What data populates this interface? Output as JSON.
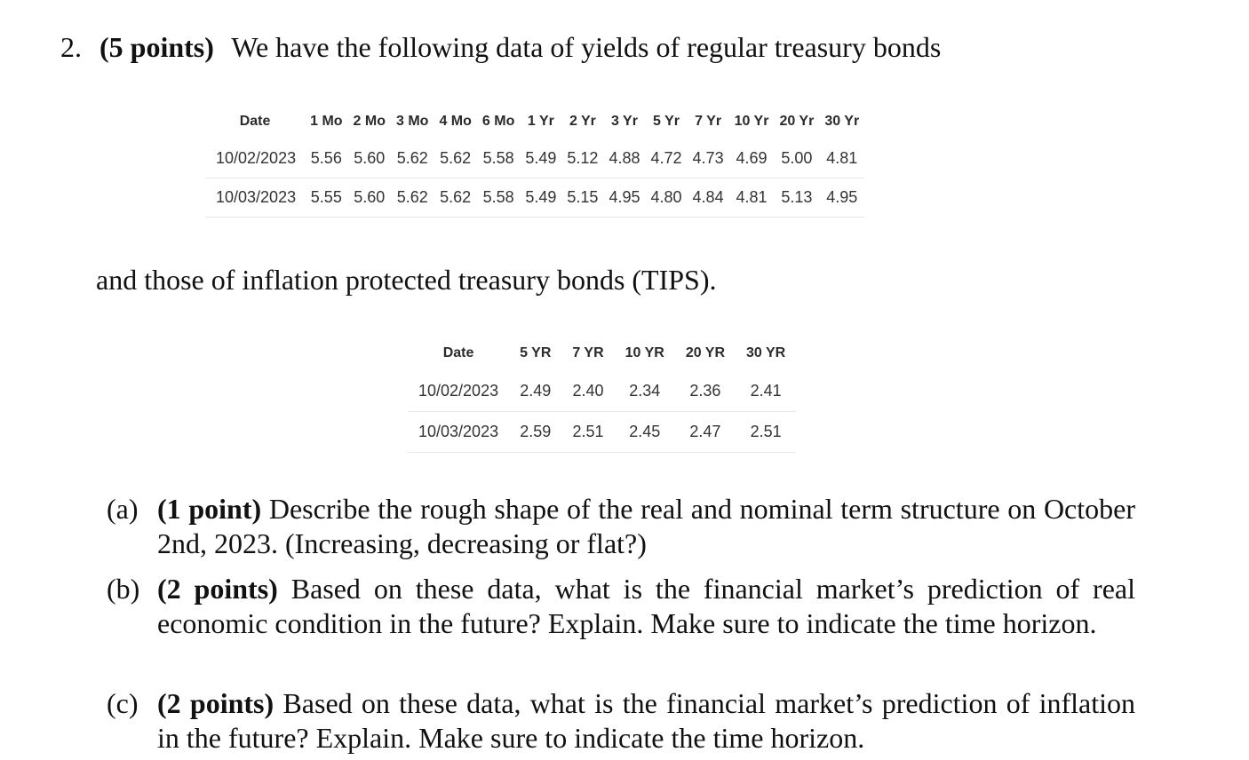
{
  "question": {
    "number": "2.",
    "points": "(5 points)",
    "intro": "We have the following data of yields of regular treasury bonds"
  },
  "nominal_table": {
    "headers": [
      "Date",
      "1 Mo",
      "2 Mo",
      "3 Mo",
      "4 Mo",
      "6 Mo",
      "1 Yr",
      "2 Yr",
      "3 Yr",
      "5 Yr",
      "7 Yr",
      "10 Yr",
      "20 Yr",
      "30 Yr"
    ],
    "rows": [
      [
        "10/02/2023",
        "5.56",
        "5.60",
        "5.62",
        "5.62",
        "5.58",
        "5.49",
        "5.12",
        "4.88",
        "4.72",
        "4.73",
        "4.69",
        "5.00",
        "4.81"
      ],
      [
        "10/03/2023",
        "5.55",
        "5.60",
        "5.62",
        "5.62",
        "5.58",
        "5.49",
        "5.15",
        "4.95",
        "4.80",
        "4.84",
        "4.81",
        "5.13",
        "4.95"
      ]
    ]
  },
  "tips_intro": "and those of inflation protected treasury bonds (TIPS).",
  "tips_table": {
    "headers": [
      "Date",
      "5 YR",
      "7 YR",
      "10 YR",
      "20 YR",
      "30 YR"
    ],
    "rows": [
      [
        "10/02/2023",
        "2.49",
        "2.40",
        "2.34",
        "2.36",
        "2.41"
      ],
      [
        "10/03/2023",
        "2.59",
        "2.51",
        "2.45",
        "2.47",
        "2.51"
      ]
    ]
  },
  "subquestions": [
    {
      "label": "(a)",
      "points": "(1 point)",
      "text": "Describe the rough shape of the real and nominal term structure on October 2nd, 2023. (Increasing, decreasing or flat?)"
    },
    {
      "label": "(b)",
      "points": "(2 points)",
      "text": "Based on these data, what is the financial market’s prediction of real economic condition in the future? Explain. Make sure to indicate the time horizon."
    },
    {
      "label": "(c)",
      "points": "(2 points)",
      "text": "Based on these data, what is the financial market’s prediction of inflation in the future? Explain. Make sure to indicate the time horizon."
    }
  ]
}
